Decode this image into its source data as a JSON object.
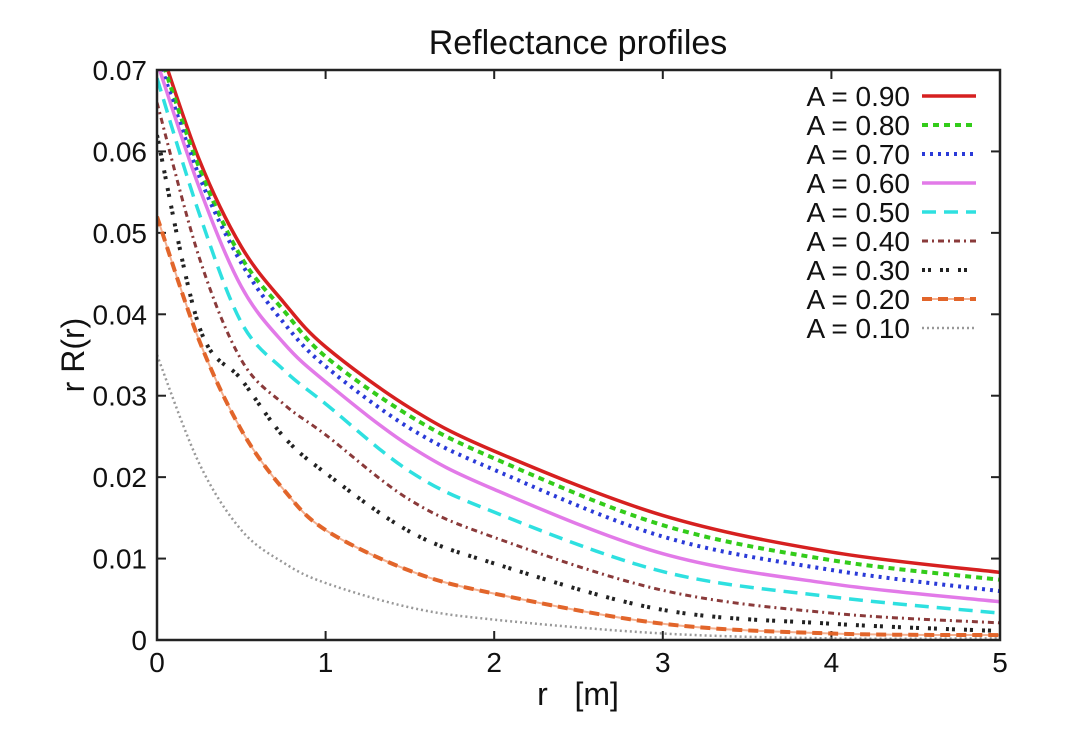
{
  "chart_data": {
    "type": "line",
    "title": "Reflectance profiles",
    "xlabel": "r   [m]",
    "ylabel": "r R(r)",
    "xlim": [
      0,
      5
    ],
    "ylim": [
      0,
      0.07
    ],
    "xticks": [
      "0",
      "1",
      "2",
      "3",
      "4",
      "5"
    ],
    "yticks": [
      "0",
      "0.01",
      "0.02",
      "0.03",
      "0.04",
      "0.05",
      "0.06",
      "0.07"
    ],
    "grid": false,
    "legend_position": "top-right",
    "x": [
      0,
      0.25,
      0.5,
      0.75,
      1,
      1.5,
      2,
      3,
      4,
      5
    ],
    "series": [
      {
        "name": "A = 0.90",
        "color": "#d62020",
        "style": "solid",
        "values": [
          0.074,
          0.059,
          0.0483,
          0.0415,
          0.036,
          0.0285,
          0.0232,
          0.0153,
          0.0108,
          0.0083
        ]
      },
      {
        "name": "A = 0.80",
        "color": "#33cc1a",
        "style": "dashed",
        "values": [
          0.073,
          0.058,
          0.047,
          0.0405,
          0.0348,
          0.0275,
          0.0223,
          0.0141,
          0.0098,
          0.0074
        ]
      },
      {
        "name": "A = 0.70",
        "color": "#2a3ad8",
        "style": "dotted",
        "values": [
          0.072,
          0.057,
          0.0463,
          0.039,
          0.0336,
          0.026,
          0.0209,
          0.0127,
          0.0086,
          0.006
        ]
      },
      {
        "name": "A = 0.60",
        "color": "#e27ae8",
        "style": "solid",
        "values": [
          0.071,
          0.0556,
          0.0434,
          0.0365,
          0.0317,
          0.0238,
          0.0185,
          0.0106,
          0.0069,
          0.0047
        ]
      },
      {
        "name": "A = 0.50",
        "color": "#2ee0e0",
        "style": "longdash",
        "values": [
          0.069,
          0.0524,
          0.039,
          0.0332,
          0.029,
          0.0207,
          0.0157,
          0.0084,
          0.0053,
          0.0033
        ]
      },
      {
        "name": "A = 0.40",
        "color": "#8a3a3a",
        "style": "dashdot",
        "values": [
          0.066,
          0.047,
          0.0344,
          0.029,
          0.0252,
          0.0172,
          0.0126,
          0.0061,
          0.0033,
          0.0021
        ]
      },
      {
        "name": "A = 0.30",
        "color": "#222222",
        "style": "pairdot",
        "values": [
          0.062,
          0.0385,
          0.032,
          0.025,
          0.0205,
          0.0133,
          0.0094,
          0.0037,
          0.002,
          0.0011
        ]
      },
      {
        "name": "A = 0.20",
        "color": "#e2652a",
        "style": "dashhalo",
        "values": [
          0.052,
          0.0368,
          0.0258,
          0.0185,
          0.0135,
          0.0085,
          0.0057,
          0.002,
          0.0008,
          0.0006
        ]
      },
      {
        "name": "A = 0.10",
        "color": "#999999",
        "style": "finedot",
        "values": [
          0.035,
          0.0217,
          0.0135,
          0.0095,
          0.007,
          0.004,
          0.0025,
          0.0008,
          0.0002,
          0.0002
        ]
      }
    ]
  }
}
